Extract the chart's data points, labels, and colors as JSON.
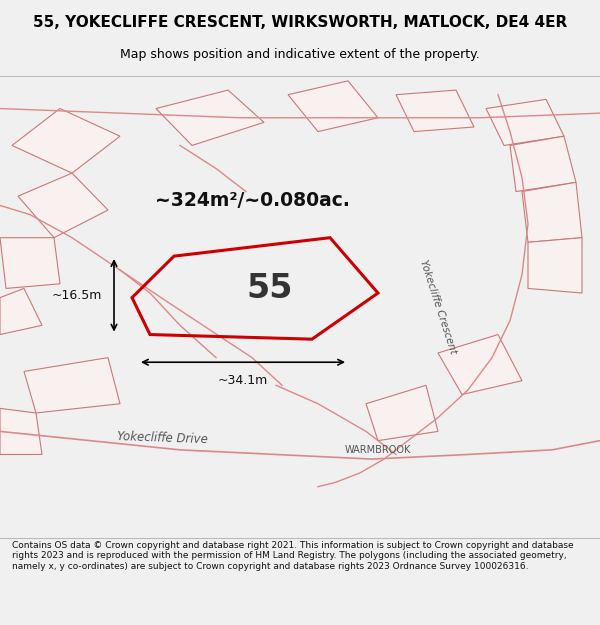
{
  "title_line1": "55, YOKECLIFFE CRESCENT, WIRKSWORTH, MATLOCK, DE4 4ER",
  "title_line2": "Map shows position and indicative extent of the property.",
  "area_text": "~324m²/~0.080ac.",
  "number_label": "55",
  "dim_width": "~34.1m",
  "dim_height": "~16.5m",
  "footer": "Contains OS data © Crown copyright and database right 2021. This information is subject to Crown copyright and database rights 2023 and is reproduced with the permission of HM Land Registry. The polygons (including the associated geometry, namely x, y co-ordinates) are subject to Crown copyright and database rights 2023 Ordnance Survey 100026316.",
  "bg_color": "#f0f0f0",
  "map_bg": "#ffffff",
  "plot_color": "#cc0000",
  "road_label1": "Yokecliffe Crescent",
  "road_label2": "Yokecliffe Drive",
  "road_label3": "WARMBROOK",
  "title_bg": "#ffffff",
  "building_fc": "#f9f0f0",
  "building_ec": "#cc7777",
  "road_color": "#dd8888"
}
